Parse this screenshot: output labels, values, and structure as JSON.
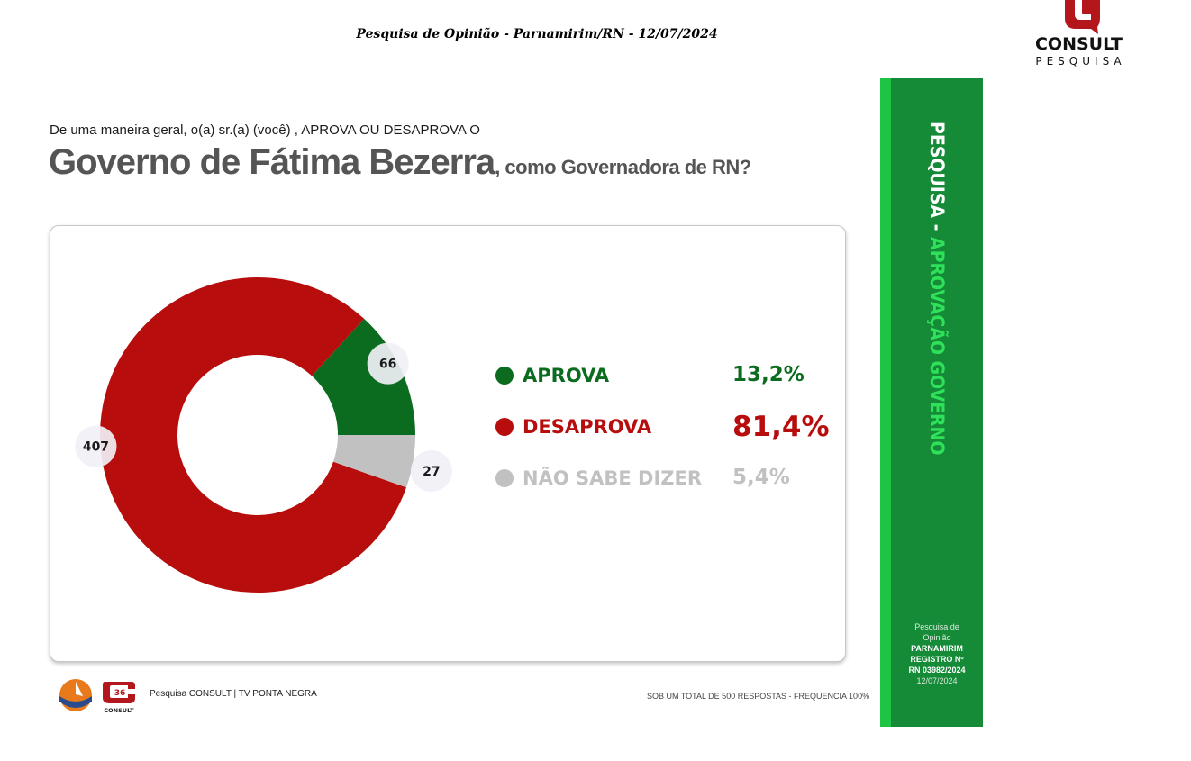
{
  "header": {
    "title": "Pesquisa de Opinião  -  Parnamirim/RN  -  12/07/2024"
  },
  "brand": {
    "name": "CONSULT",
    "sub": "PESQUISA"
  },
  "question": {
    "intro": "De uma maneira geral, o(a) sr.(a) (você) , APROVA OU DESAPROVA O",
    "main": "Governo de Fátima Bezerra",
    "rest": ", como Governadora de RN?"
  },
  "chart_data": {
    "type": "pie",
    "categories": [
      "APROVA",
      "DESAPROVA",
      "NÃO SABE DIZER"
    ],
    "values": [
      66,
      407,
      27
    ],
    "percent_labels": [
      "13,2%",
      "81,4%",
      "5,4%"
    ],
    "colors": [
      "#0b6b1e",
      "#b80d0d",
      "#c1c1c1"
    ],
    "value_labels": [
      "66",
      "407",
      "27"
    ]
  },
  "footer": {
    "left": "Pesquisa CONSULT | TV PONTA NEGRA",
    "right": "SOB UM TOTAL DE 500 RESPOSTAS - FREQUENCIA 100%",
    "logo_badge": "36",
    "logo_text": "CONSULT"
  },
  "side": {
    "title_a": "PESQUISA - ",
    "title_b": "APROVAÇÃO GOVERNO",
    "info_1": "Pesquisa de",
    "info_2": "Opinião",
    "info_3": "PARNAMIRIM",
    "info_4": "REGISTRO Nº",
    "info_5": "RN 03982/2024",
    "info_6": "12/07/2024"
  }
}
